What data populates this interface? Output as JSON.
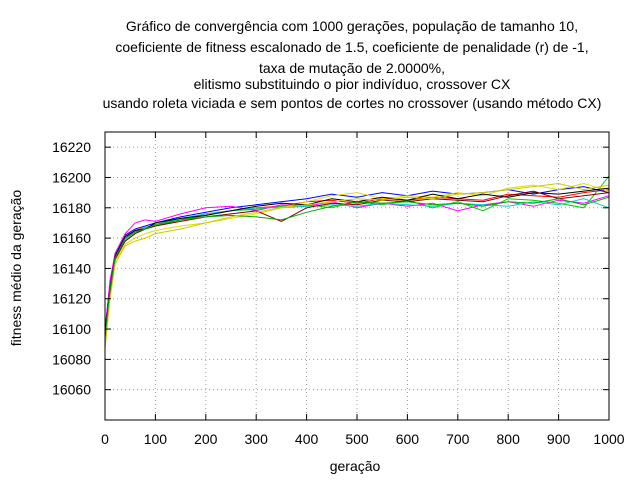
{
  "chart_data": {
    "type": "line",
    "title_lines": [
      "Gráfico de convergência com 1000 gerações, população de tamanho 10,",
      "coeficiente de fitness escalonado de 1.5, coeficiente de penalidade (r) de -1,",
      "taxa de mutação de 2.0000%,",
      "elitismo substituindo o pior indivíduo, crossover CX",
      "usando roleta viciada e sem pontos de cortes no crossover (usando método CX)"
    ],
    "xlabel": "geração",
    "ylabel": "fitness médio da geração",
    "xlim": [
      0,
      1000
    ],
    "ylim": [
      16040,
      16230
    ],
    "x_ticks": [
      "0",
      "100",
      "200",
      "300",
      "400",
      "500",
      "600",
      "700",
      "800",
      "900",
      "1000"
    ],
    "y_ticks": [
      "16060",
      "16080",
      "16100",
      "16120",
      "16140",
      "16160",
      "16180",
      "16200",
      "16220"
    ],
    "grid": true,
    "legend": "none",
    "series": [
      {
        "color": "#ff0000",
        "x": [
          0,
          10,
          20,
          40,
          60,
          80,
          100,
          150,
          200,
          250,
          300,
          350,
          400,
          450,
          500,
          550,
          600,
          650,
          700,
          750,
          800,
          850,
          900,
          950,
          1000
        ],
        "y": [
          16095,
          16125,
          16148,
          16160,
          16165,
          16167,
          16168,
          16172,
          16176,
          16178,
          16180,
          16181,
          16184,
          16185,
          16183,
          16186,
          16185,
          16187,
          16186,
          16185,
          16189,
          16188,
          16187,
          16190,
          16192
        ]
      },
      {
        "color": "#00cc00",
        "x": [
          0,
          10,
          20,
          40,
          60,
          80,
          100,
          150,
          200,
          250,
          300,
          350,
          400,
          450,
          500,
          550,
          600,
          650,
          700,
          750,
          800,
          850,
          900,
          950,
          1000
        ],
        "y": [
          16090,
          16128,
          16150,
          16158,
          16163,
          16166,
          16168,
          16172,
          16175,
          16178,
          16179,
          16181,
          16182,
          16180,
          16184,
          16182,
          16185,
          16180,
          16184,
          16178,
          16186,
          16185,
          16183,
          16180,
          16201
        ]
      },
      {
        "color": "#0000ff",
        "x": [
          0,
          10,
          20,
          40,
          60,
          80,
          100,
          150,
          200,
          250,
          300,
          350,
          400,
          450,
          500,
          550,
          600,
          650,
          700,
          750,
          800,
          850,
          900,
          950,
          1000
        ],
        "y": [
          16100,
          16130,
          16149,
          16162,
          16166,
          16168,
          16170,
          16174,
          16177,
          16180,
          16182,
          16184,
          16186,
          16189,
          16187,
          16190,
          16188,
          16191,
          16189,
          16190,
          16192,
          16189,
          16192,
          16194,
          16190
        ]
      },
      {
        "color": "#ff00ff",
        "x": [
          0,
          10,
          20,
          40,
          60,
          80,
          100,
          150,
          200,
          250,
          300,
          350,
          400,
          450,
          500,
          550,
          600,
          650,
          700,
          750,
          800,
          850,
          900,
          950,
          1000
        ],
        "y": [
          16098,
          16132,
          16150,
          16163,
          16170,
          16172,
          16171,
          16176,
          16180,
          16181,
          16178,
          16182,
          16181,
          16184,
          16180,
          16183,
          16181,
          16183,
          16178,
          16182,
          16184,
          16181,
          16185,
          16183,
          16188
        ]
      },
      {
        "color": "#00cccc",
        "x": [
          0,
          10,
          20,
          40,
          60,
          80,
          100,
          150,
          200,
          250,
          300,
          350,
          400,
          450,
          500,
          550,
          600,
          650,
          700,
          750,
          800,
          850,
          900,
          950,
          1000
        ],
        "y": [
          16092,
          16126,
          16147,
          16159,
          16164,
          16167,
          16169,
          16173,
          16176,
          16178,
          16180,
          16180,
          16181,
          16182,
          16181,
          16183,
          16182,
          16181,
          16183,
          16182,
          16181,
          16184,
          16182,
          16186,
          16180
        ]
      },
      {
        "color": "#dddd00",
        "x": [
          0,
          10,
          20,
          40,
          60,
          80,
          100,
          150,
          200,
          250,
          300,
          350,
          400,
          450,
          500,
          550,
          600,
          650,
          700,
          750,
          800,
          850,
          900,
          950,
          1000
        ],
        "y": [
          16088,
          16122,
          16145,
          16156,
          16160,
          16163,
          16165,
          16168,
          16170,
          16173,
          16176,
          16180,
          16184,
          16188,
          16190,
          16186,
          16188,
          16187,
          16190,
          16188,
          16193,
          16195,
          16192,
          16196,
          16191
        ]
      },
      {
        "color": "#000000",
        "x": [
          0,
          10,
          20,
          40,
          60,
          80,
          100,
          150,
          200,
          250,
          300,
          350,
          400,
          450,
          500,
          550,
          600,
          650,
          700,
          750,
          800,
          850,
          900,
          950,
          1000
        ],
        "y": [
          16096,
          16127,
          16148,
          16161,
          16165,
          16166,
          16170,
          16173,
          16175,
          16178,
          16181,
          16183,
          16182,
          16186,
          16184,
          16187,
          16185,
          16189,
          16186,
          16189,
          16187,
          16190,
          16189,
          16191,
          16193
        ]
      },
      {
        "color": "#800000",
        "x": [
          0,
          10,
          20,
          40,
          60,
          80,
          100,
          150,
          200,
          250,
          300,
          350,
          400,
          450,
          500,
          550,
          600,
          650,
          700,
          750,
          800,
          850,
          900,
          950,
          1000
        ],
        "y": [
          16094,
          16124,
          16146,
          16158,
          16163,
          16166,
          16168,
          16171,
          16174,
          16176,
          16178,
          16171,
          16180,
          16183,
          16182,
          16185,
          16184,
          16186,
          16185,
          16184,
          16188,
          16191,
          16186,
          16188,
          16190
        ]
      },
      {
        "color": "#00aa00",
        "x": [
          0,
          10,
          20,
          40,
          60,
          80,
          100,
          150,
          200,
          250,
          300,
          350,
          400,
          450,
          500,
          550,
          600,
          650,
          700,
          750,
          800,
          850,
          900,
          950,
          1000
        ],
        "y": [
          16093,
          16126,
          16147,
          16160,
          16164,
          16166,
          16169,
          16172,
          16174,
          16175,
          16174,
          16172,
          16177,
          16181,
          16184,
          16183,
          16184,
          16182,
          16183,
          16181,
          16184,
          16183,
          16186,
          16182,
          16187
        ]
      },
      {
        "color": "#cccc00",
        "x": [
          0,
          10,
          20,
          40,
          60,
          80,
          100,
          150,
          200,
          250,
          300,
          350,
          400,
          450,
          500,
          550,
          600,
          650,
          700,
          750,
          800,
          850,
          900,
          950,
          1000
        ],
        "y": [
          16087,
          16120,
          16143,
          16155,
          16158,
          16160,
          16163,
          16166,
          16170,
          16174,
          16177,
          16180,
          16182,
          16184,
          16186,
          16185,
          16187,
          16186,
          16189,
          16190,
          16192,
          16194,
          16196,
          16192,
          16195
        ]
      }
    ]
  }
}
